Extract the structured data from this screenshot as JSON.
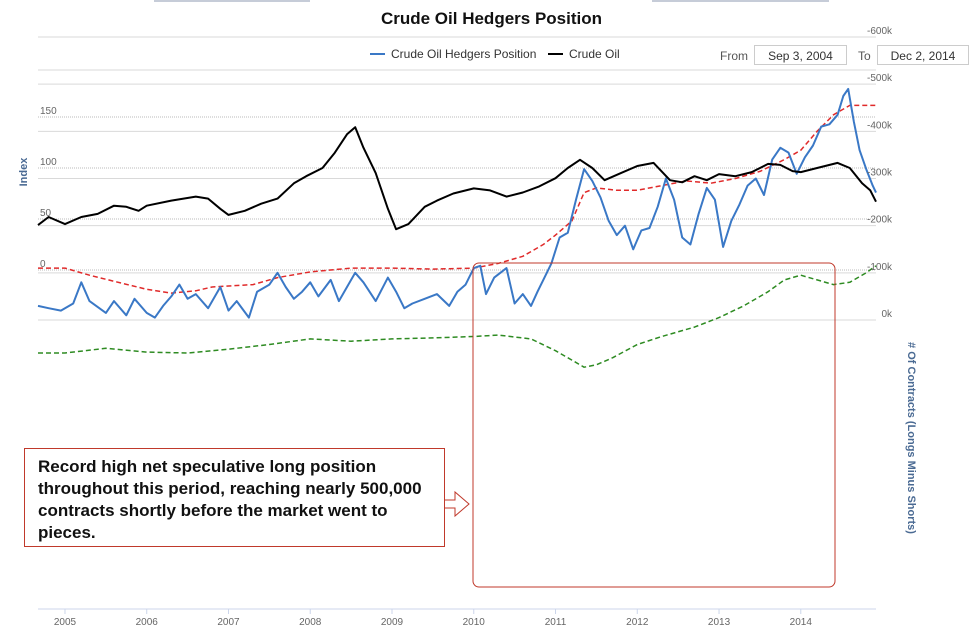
{
  "chart_data": {
    "type": "line",
    "title": "Crude Oil Hedgers Position",
    "date_range": {
      "from_label": "From",
      "from": "Sep 3, 2004",
      "to_label": "To",
      "to": "Dec 2, 2014"
    },
    "x_axis": {
      "ticks": [
        "2005",
        "2006",
        "2007",
        "2008",
        "2009",
        "2010",
        "2011",
        "2012",
        "2013",
        "2014"
      ],
      "range": [
        2004.67,
        2014.92
      ]
    },
    "upper_panel": {
      "ylabel": "Index",
      "yticks": [
        "150",
        "100",
        "50",
        "0"
      ],
      "ylim": [
        0,
        150
      ],
      "series": [
        {
          "name": "Crude Oil",
          "color": "#000000",
          "points": [
            [
              2004.67,
              44
            ],
            [
              2004.8,
              52
            ],
            [
              2005.0,
              45
            ],
            [
              2005.2,
              52
            ],
            [
              2005.4,
              55
            ],
            [
              2005.6,
              63
            ],
            [
              2005.75,
              62
            ],
            [
              2005.9,
              58
            ],
            [
              2006.0,
              63
            ],
            [
              2006.3,
              68
            ],
            [
              2006.6,
              72
            ],
            [
              2006.75,
              70
            ],
            [
              2006.9,
              60
            ],
            [
              2007.0,
              54
            ],
            [
              2007.2,
              58
            ],
            [
              2007.4,
              65
            ],
            [
              2007.6,
              70
            ],
            [
              2007.8,
              85
            ],
            [
              2007.95,
              92
            ],
            [
              2008.15,
              100
            ],
            [
              2008.3,
              115
            ],
            [
              2008.45,
              133
            ],
            [
              2008.55,
              140
            ],
            [
              2008.65,
              120
            ],
            [
              2008.8,
              95
            ],
            [
              2008.95,
              60
            ],
            [
              2009.05,
              40
            ],
            [
              2009.2,
              45
            ],
            [
              2009.4,
              62
            ],
            [
              2009.55,
              68
            ],
            [
              2009.75,
              75
            ],
            [
              2010.0,
              80
            ],
            [
              2010.2,
              78
            ],
            [
              2010.4,
              72
            ],
            [
              2010.6,
              76
            ],
            [
              2010.8,
              82
            ],
            [
              2011.0,
              90
            ],
            [
              2011.15,
              100
            ],
            [
              2011.3,
              108
            ],
            [
              2011.45,
              100
            ],
            [
              2011.6,
              88
            ],
            [
              2011.8,
              95
            ],
            [
              2012.0,
              102
            ],
            [
              2012.2,
              105
            ],
            [
              2012.4,
              88
            ],
            [
              2012.55,
              86
            ],
            [
              2012.7,
              92
            ],
            [
              2012.85,
              88
            ],
            [
              2013.0,
              94
            ],
            [
              2013.2,
              92
            ],
            [
              2013.4,
              96
            ],
            [
              2013.6,
              104
            ],
            [
              2013.75,
              103
            ],
            [
              2013.9,
              97
            ],
            [
              2014.0,
              96
            ],
            [
              2014.2,
              100
            ],
            [
              2014.45,
              105
            ],
            [
              2014.6,
              100
            ],
            [
              2014.75,
              85
            ],
            [
              2014.85,
              78
            ],
            [
              2014.92,
              67
            ]
          ]
        }
      ]
    },
    "lower_panel": {
      "ylabel": "# Of Contracts (Longs Minus Shorts)",
      "yticks": [
        "0k",
        "-100k",
        "-200k",
        "-300k",
        "-400k",
        "-500k",
        "-600k"
      ],
      "ylim": [
        -600000,
        0
      ],
      "series": [
        {
          "name": "Crude Oil Hedgers Position",
          "color": "#3a78c6",
          "points": [
            [
              2004.67,
              -30
            ],
            [
              2004.8,
              -25
            ],
            [
              2004.95,
              -20
            ],
            [
              2005.1,
              -35
            ],
            [
              2005.2,
              -80
            ],
            [
              2005.3,
              -40
            ],
            [
              2005.5,
              -15
            ],
            [
              2005.6,
              -40
            ],
            [
              2005.75,
              -10
            ],
            [
              2005.85,
              -45
            ],
            [
              2006.0,
              -15
            ],
            [
              2006.1,
              -5
            ],
            [
              2006.2,
              -30
            ],
            [
              2006.3,
              -50
            ],
            [
              2006.4,
              -75
            ],
            [
              2006.5,
              -45
            ],
            [
              2006.6,
              -55
            ],
            [
              2006.75,
              -25
            ],
            [
              2006.9,
              -70
            ],
            [
              2007.0,
              -20
            ],
            [
              2007.1,
              -40
            ],
            [
              2007.25,
              -5
            ],
            [
              2007.35,
              -60
            ],
            [
              2007.5,
              -75
            ],
            [
              2007.6,
              -100
            ],
            [
              2007.7,
              -70
            ],
            [
              2007.8,
              -45
            ],
            [
              2007.9,
              -60
            ],
            [
              2008.0,
              -80
            ],
            [
              2008.1,
              -50
            ],
            [
              2008.25,
              -85
            ],
            [
              2008.35,
              -40
            ],
            [
              2008.45,
              -70
            ],
            [
              2008.55,
              -100
            ],
            [
              2008.65,
              -80
            ],
            [
              2008.8,
              -40
            ],
            [
              2008.95,
              -90
            ],
            [
              2009.05,
              -60
            ],
            [
              2009.15,
              -25
            ],
            [
              2009.25,
              -35
            ],
            [
              2009.4,
              -45
            ],
            [
              2009.55,
              -55
            ],
            [
              2009.7,
              -30
            ],
            [
              2009.8,
              -60
            ],
            [
              2009.9,
              -75
            ],
            [
              2010.0,
              -110
            ],
            [
              2010.08,
              -115
            ],
            [
              2010.15,
              -55
            ],
            [
              2010.25,
              -90
            ],
            [
              2010.4,
              -110
            ],
            [
              2010.5,
              -35
            ],
            [
              2010.6,
              -55
            ],
            [
              2010.7,
              -30
            ],
            [
              2010.78,
              -60
            ],
            [
              2010.85,
              -85
            ],
            [
              2010.95,
              -120
            ],
            [
              2011.05,
              -175
            ],
            [
              2011.15,
              -185
            ],
            [
              2011.25,
              -255
            ],
            [
              2011.35,
              -320
            ],
            [
              2011.45,
              -295
            ],
            [
              2011.55,
              -260
            ],
            [
              2011.65,
              -210
            ],
            [
              2011.75,
              -180
            ],
            [
              2011.85,
              -200
            ],
            [
              2011.95,
              -150
            ],
            [
              2012.05,
              -190
            ],
            [
              2012.15,
              -195
            ],
            [
              2012.25,
              -240
            ],
            [
              2012.35,
              -300
            ],
            [
              2012.45,
              -255
            ],
            [
              2012.55,
              -175
            ],
            [
              2012.65,
              -160
            ],
            [
              2012.75,
              -225
            ],
            [
              2012.85,
              -280
            ],
            [
              2012.95,
              -255
            ],
            [
              2013.05,
              -155
            ],
            [
              2013.15,
              -210
            ],
            [
              2013.25,
              -245
            ],
            [
              2013.35,
              -285
            ],
            [
              2013.45,
              -300
            ],
            [
              2013.55,
              -265
            ],
            [
              2013.65,
              -340
            ],
            [
              2013.75,
              -365
            ],
            [
              2013.85,
              -355
            ],
            [
              2013.95,
              -310
            ],
            [
              2014.05,
              -345
            ],
            [
              2014.15,
              -370
            ],
            [
              2014.25,
              -410
            ],
            [
              2014.35,
              -415
            ],
            [
              2014.45,
              -435
            ],
            [
              2014.52,
              -475
            ],
            [
              2014.58,
              -490
            ],
            [
              2014.65,
              -420
            ],
            [
              2014.72,
              -360
            ],
            [
              2014.8,
              -320
            ],
            [
              2014.88,
              -285
            ],
            [
              2014.92,
              -270
            ]
          ]
        },
        {
          "name": "",
          "color": "#2e8b22",
          "dash": true,
          "points": [
            [
              2004.67,
              70
            ],
            [
              2005.0,
              70
            ],
            [
              2005.5,
              60
            ],
            [
              2006.0,
              68
            ],
            [
              2006.5,
              70
            ],
            [
              2007.0,
              62
            ],
            [
              2007.5,
              52
            ],
            [
              2008.0,
              40
            ],
            [
              2008.5,
              45
            ],
            [
              2009.0,
              40
            ],
            [
              2009.5,
              38
            ],
            [
              2010.0,
              35
            ],
            [
              2010.3,
              32
            ],
            [
              2010.7,
              40
            ],
            [
              2011.0,
              65
            ],
            [
              2011.2,
              85
            ],
            [
              2011.35,
              100
            ],
            [
              2011.5,
              95
            ],
            [
              2011.7,
              80
            ],
            [
              2012.0,
              52
            ],
            [
              2012.3,
              35
            ],
            [
              2012.7,
              15
            ],
            [
              2013.0,
              -5
            ],
            [
              2013.3,
              -30
            ],
            [
              2013.6,
              -60
            ],
            [
              2013.8,
              -85
            ],
            [
              2014.0,
              -95
            ],
            [
              2014.2,
              -85
            ],
            [
              2014.4,
              -75
            ],
            [
              2014.6,
              -80
            ],
            [
              2014.8,
              -100
            ],
            [
              2014.92,
              -115
            ]
          ]
        },
        {
          "name": "",
          "color": "#e02a2a",
          "dash": true,
          "points": [
            [
              2004.67,
              -110
            ],
            [
              2005.0,
              -110
            ],
            [
              2005.3,
              -95
            ],
            [
              2005.6,
              -82
            ],
            [
              2006.0,
              -65
            ],
            [
              2006.3,
              -57
            ],
            [
              2006.6,
              -62
            ],
            [
              2006.8,
              -70
            ],
            [
              2007.0,
              -72
            ],
            [
              2007.3,
              -75
            ],
            [
              2007.6,
              -90
            ],
            [
              2008.0,
              -102
            ],
            [
              2008.5,
              -110
            ],
            [
              2009.0,
              -110
            ],
            [
              2009.5,
              -108
            ],
            [
              2010.0,
              -110
            ],
            [
              2010.3,
              -120
            ],
            [
              2010.6,
              -135
            ],
            [
              2010.85,
              -160
            ],
            [
              2011.0,
              -180
            ],
            [
              2011.2,
              -210
            ],
            [
              2011.35,
              -270
            ],
            [
              2011.5,
              -280
            ],
            [
              2011.75,
              -275
            ],
            [
              2012.0,
              -275
            ],
            [
              2012.3,
              -285
            ],
            [
              2012.6,
              -295
            ],
            [
              2012.9,
              -290
            ],
            [
              2013.2,
              -300
            ],
            [
              2013.5,
              -315
            ],
            [
              2013.8,
              -340
            ],
            [
              2014.0,
              -360
            ],
            [
              2014.2,
              -400
            ],
            [
              2014.4,
              -435
            ],
            [
              2014.6,
              -455
            ],
            [
              2014.92,
              -455
            ]
          ]
        }
      ]
    },
    "annotation": "Record high net speculative long position throughout this period, reaching nearly 500,000 contracts shortly before the market went to pieces."
  },
  "colors": {
    "hedgers_line": "#3a78c6",
    "oil_line": "#000000",
    "green_band": "#2e8b22",
    "red_band": "#e02a2a",
    "highlight_box": "#c0392b"
  }
}
